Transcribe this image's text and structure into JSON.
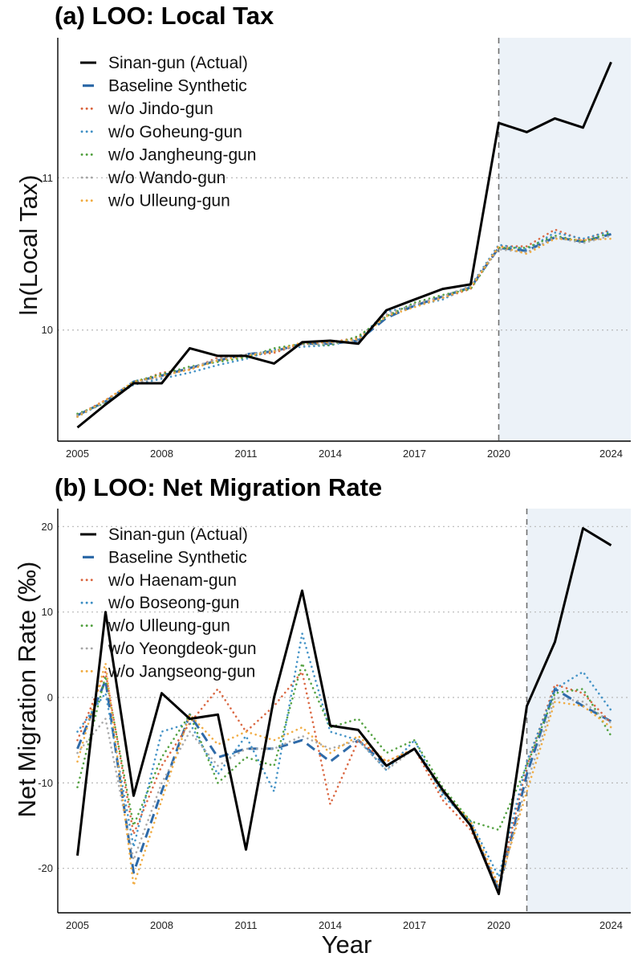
{
  "chart_data": [
    {
      "type": "line",
      "title": "(a) LOO: Local Tax",
      "xlabel": "",
      "ylabel": "ln(Local Tax)",
      "xlim": [
        2004.3,
        2024.7
      ],
      "ylim": [
        9.27,
        11.92
      ],
      "x_ticks": [
        2005,
        2008,
        2011,
        2014,
        2017,
        2020,
        2024
      ],
      "y_ticks": [
        10,
        11
      ],
      "grid": "horizontal dotted",
      "shaded_from": 2020,
      "vline": 2020,
      "legend": "top-left",
      "x": [
        2005,
        2006,
        2007,
        2008,
        2009,
        2010,
        2011,
        2012,
        2013,
        2014,
        2015,
        2016,
        2017,
        2018,
        2019,
        2020,
        2021,
        2022,
        2023,
        2024
      ],
      "series": [
        {
          "name": "Sinan-gun (Actual)",
          "style": "solid",
          "color": "#000000",
          "values": [
            9.36,
            9.51,
            9.65,
            9.65,
            9.88,
            9.83,
            9.83,
            9.78,
            9.92,
            9.93,
            9.91,
            10.13,
            10.2,
            10.27,
            10.3,
            11.36,
            11.3,
            11.39,
            11.33,
            11.76
          ]
        },
        {
          "name": "Baseline Synthetic",
          "style": "dashed",
          "color": "#2e6aa8",
          "values": [
            9.44,
            9.53,
            9.66,
            9.7,
            9.75,
            9.8,
            9.84,
            9.86,
            9.91,
            9.91,
            9.93,
            10.08,
            10.16,
            10.22,
            10.28,
            10.54,
            10.52,
            10.61,
            10.58,
            10.63
          ]
        },
        {
          "name": "w/o Jindo-gun",
          "style": "dotted",
          "color": "#d9623b",
          "values": [
            9.44,
            9.54,
            9.65,
            9.72,
            9.74,
            9.82,
            9.83,
            9.85,
            9.91,
            9.92,
            9.95,
            10.1,
            10.17,
            10.21,
            10.27,
            10.55,
            10.55,
            10.66,
            10.59,
            10.66
          ]
        },
        {
          "name": "w/o Goheung-gun",
          "style": "dotted",
          "color": "#3c8ec4",
          "values": [
            9.43,
            9.53,
            9.64,
            9.68,
            9.72,
            9.77,
            9.81,
            9.87,
            9.89,
            9.9,
            9.94,
            10.12,
            10.16,
            10.2,
            10.29,
            10.56,
            10.53,
            10.64,
            10.6,
            10.65
          ]
        },
        {
          "name": "w/o Jangheung-gun",
          "style": "dotted",
          "color": "#4d9e3a",
          "values": [
            9.45,
            9.52,
            9.66,
            9.71,
            9.76,
            9.79,
            9.82,
            9.88,
            9.91,
            9.9,
            9.96,
            10.09,
            10.18,
            10.23,
            10.27,
            10.54,
            10.54,
            10.62,
            10.58,
            10.64
          ]
        },
        {
          "name": "w/o Wando-gun",
          "style": "dotted",
          "color": "#a6a6a6",
          "values": [
            9.44,
            9.53,
            9.65,
            9.69,
            9.75,
            9.81,
            9.84,
            9.86,
            9.9,
            9.91,
            9.93,
            10.1,
            10.17,
            10.22,
            10.29,
            10.53,
            10.51,
            10.61,
            10.57,
            10.62
          ]
        },
        {
          "name": "w/o Ulleung-gun",
          "style": "dotted",
          "color": "#f0a93b",
          "values": [
            9.43,
            9.54,
            9.66,
            9.7,
            9.74,
            9.8,
            9.83,
            9.86,
            9.92,
            9.92,
            9.94,
            10.09,
            10.15,
            10.21,
            10.28,
            10.55,
            10.5,
            10.6,
            10.59,
            10.6
          ]
        }
      ]
    },
    {
      "type": "line",
      "title": "(b) LOO: Net Migration Rate",
      "xlabel": "Year",
      "ylabel": "Net Migration Rate (‰)",
      "xlim": [
        2004.3,
        2024.7
      ],
      "ylim": [
        -25.2,
        22.1
      ],
      "x_ticks": [
        2005,
        2008,
        2011,
        2014,
        2017,
        2020,
        2024
      ],
      "y_ticks": [
        -20,
        -10,
        0,
        10,
        20
      ],
      "grid": "horizontal dotted",
      "shaded_from": 2021,
      "vline": 2021,
      "legend": "top-left",
      "x": [
        2005,
        2006,
        2007,
        2008,
        2009,
        2010,
        2011,
        2012,
        2013,
        2014,
        2015,
        2016,
        2017,
        2018,
        2019,
        2020,
        2021,
        2022,
        2023,
        2024
      ],
      "series": [
        {
          "name": "Sinan-gun (Actual)",
          "style": "solid",
          "color": "#000000",
          "values": [
            -18.5,
            10.0,
            -11.5,
            0.5,
            -2.5,
            -2.0,
            -17.8,
            0.0,
            12.5,
            -3.3,
            -3.8,
            -8.0,
            -6.0,
            -10.8,
            -15.0,
            -23.0,
            -1.0,
            6.5,
            19.8,
            17.8
          ]
        },
        {
          "name": "Baseline Synthetic",
          "style": "dashed",
          "color": "#2e6aa8",
          "values": [
            -6.0,
            2.0,
            -20.5,
            -11.0,
            -2.0,
            -7.0,
            -6.0,
            -6.0,
            -5.0,
            -7.5,
            -5.0,
            -8.0,
            -6.0,
            -11.0,
            -15.0,
            -22.5,
            -9.0,
            1.0,
            -1.0,
            -2.8
          ]
        },
        {
          "name": "w/o Haenam-gun",
          "style": "dotted",
          "color": "#d9623b",
          "values": [
            -5.0,
            3.0,
            -16.0,
            -8.0,
            -3.0,
            1.0,
            -4.0,
            -1.0,
            3.0,
            -12.5,
            -5.0,
            -7.5,
            -6.0,
            -12.0,
            -15.5,
            -22.0,
            -8.0,
            1.5,
            0.5,
            -3.0
          ]
        },
        {
          "name": "w/o Boseong-gun",
          "style": "dotted",
          "color": "#3c8ec4",
          "values": [
            -4.0,
            0.5,
            -17.5,
            -4.0,
            -3.0,
            -9.0,
            -4.5,
            -11.0,
            7.5,
            -4.0,
            -5.0,
            -8.5,
            -5.0,
            -11.5,
            -14.5,
            -21.0,
            -7.5,
            1.0,
            3.0,
            -1.5
          ]
        },
        {
          "name": "w/o Ulleung-gun",
          "style": "dotted",
          "color": "#4d9e3a",
          "values": [
            -10.5,
            2.5,
            -15.0,
            -7.0,
            -2.0,
            -10.0,
            -7.0,
            -8.0,
            4.0,
            -3.5,
            -2.5,
            -6.5,
            -5.0,
            -10.5,
            -14.5,
            -15.5,
            -8.0,
            0.5,
            1.0,
            -4.5
          ]
        },
        {
          "name": "w/o Yeongdeok-gun",
          "style": "dotted",
          "color": "#a6a6a6",
          "values": [
            -6.5,
            -2.5,
            -19.0,
            -10.0,
            -4.0,
            -8.0,
            -6.0,
            -6.0,
            -4.5,
            -6.0,
            -5.0,
            -8.5,
            -6.0,
            -11.0,
            -15.0,
            -22.5,
            -10.0,
            0.0,
            -0.5,
            -3.0
          ]
        },
        {
          "name": "w/o Jangseong-gun",
          "style": "dotted",
          "color": "#f0a93b",
          "values": [
            -7.5,
            4.0,
            -22.0,
            -12.0,
            -2.0,
            -5.5,
            -4.0,
            -5.0,
            -3.5,
            -6.5,
            -4.5,
            -7.5,
            -6.0,
            -11.0,
            -14.5,
            -22.0,
            -11.0,
            -0.5,
            -1.0,
            -3.5
          ]
        }
      ]
    }
  ]
}
